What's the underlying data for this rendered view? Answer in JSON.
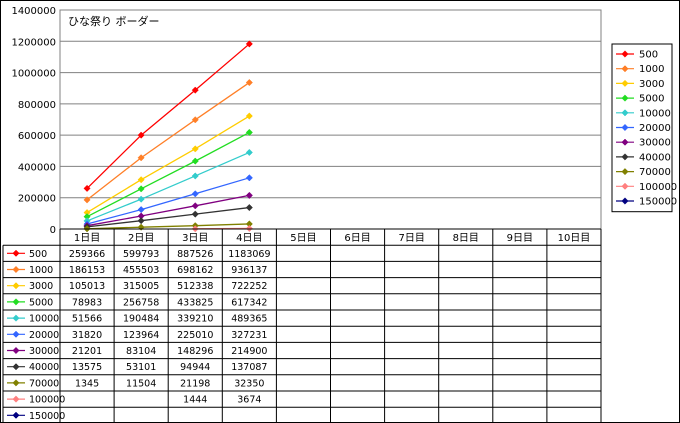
{
  "chart_data": {
    "type": "line",
    "title": "ひな祭り ボーダー",
    "xlabel": "",
    "ylabel": "",
    "ylim": [
      0,
      1400000
    ],
    "yticks": [
      "0",
      "200000",
      "400000",
      "600000",
      "800000",
      "1000000",
      "1200000",
      "1400000"
    ],
    "grid": true,
    "legend_position": "right",
    "categories": [
      "1日目",
      "2日目",
      "3日目",
      "4日目",
      "5日目",
      "6日目",
      "7日目",
      "8日目",
      "9日目",
      "10日目"
    ],
    "series": [
      {
        "name": "500",
        "color": "#ff0000",
        "marker": "diamond",
        "values": [
          259366,
          599793,
          887526,
          1183069,
          null,
          null,
          null,
          null,
          null,
          null
        ]
      },
      {
        "name": "1000",
        "color": "#ff7f27",
        "marker": "diamond",
        "values": [
          186153,
          455503,
          698162,
          936137,
          null,
          null,
          null,
          null,
          null,
          null
        ]
      },
      {
        "name": "3000",
        "color": "#ffcc00",
        "marker": "diamond",
        "values": [
          105013,
          315005,
          512338,
          722252,
          null,
          null,
          null,
          null,
          null,
          null
        ]
      },
      {
        "name": "5000",
        "color": "#22dd22",
        "marker": "diamond",
        "values": [
          78983,
          256758,
          433825,
          617342,
          null,
          null,
          null,
          null,
          null,
          null
        ]
      },
      {
        "name": "10000",
        "color": "#33cccc",
        "marker": "diamond",
        "values": [
          51566,
          190484,
          339210,
          489365,
          null,
          null,
          null,
          null,
          null,
          null
        ]
      },
      {
        "name": "20000",
        "color": "#3366ff",
        "marker": "diamond",
        "values": [
          31820,
          123964,
          225010,
          327231,
          null,
          null,
          null,
          null,
          null,
          null
        ]
      },
      {
        "name": "30000",
        "color": "#800080",
        "marker": "diamond",
        "values": [
          21201,
          83104,
          148296,
          214900,
          null,
          null,
          null,
          null,
          null,
          null
        ]
      },
      {
        "name": "40000",
        "color": "#333333",
        "marker": "diamond",
        "values": [
          13575,
          53101,
          94944,
          137087,
          null,
          null,
          null,
          null,
          null,
          null
        ]
      },
      {
        "name": "70000",
        "color": "#808000",
        "marker": "diamond",
        "values": [
          1345,
          11504,
          21198,
          32350,
          null,
          null,
          null,
          null,
          null,
          null
        ]
      },
      {
        "name": "100000",
        "color": "#ff8080",
        "marker": "diamond",
        "values": [
          null,
          null,
          1444,
          3674,
          null,
          null,
          null,
          null,
          null,
          null
        ]
      },
      {
        "name": "150000",
        "color": "#000080",
        "marker": "diamond",
        "values": [
          null,
          null,
          null,
          null,
          null,
          null,
          null,
          null,
          null,
          null
        ]
      }
    ]
  }
}
